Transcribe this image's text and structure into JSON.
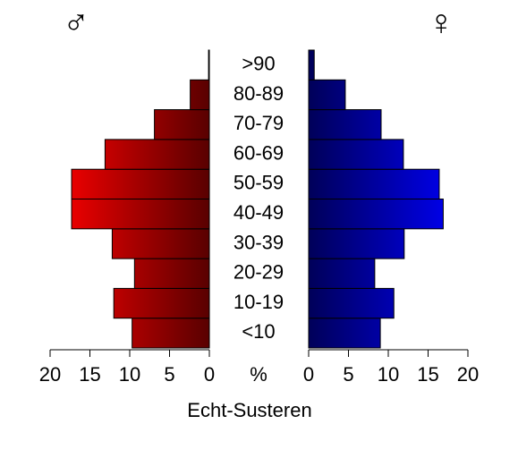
{
  "chart_data": {
    "type": "population-pyramid",
    "title": "Echt-Susteren",
    "center_label": "%",
    "categories": [
      "<10",
      "10-19",
      "20-29",
      "30-39",
      "40-49",
      "50-59",
      "60-69",
      "70-79",
      "80-89",
      ">90"
    ],
    "series": [
      {
        "name": "♂",
        "color": "#ff0000",
        "side": "left",
        "values": [
          9.7,
          12.0,
          9.4,
          12.2,
          17.3,
          17.3,
          13.1,
          6.9,
          2.4,
          0.1
        ]
      },
      {
        "name": "♀",
        "color": "#0000ff",
        "side": "right",
        "values": [
          9.0,
          10.7,
          8.3,
          12.0,
          16.9,
          16.4,
          11.9,
          9.1,
          4.6,
          0.7
        ]
      }
    ],
    "xlim": [
      0,
      20
    ],
    "xticks": [
      0,
      5,
      10,
      15,
      20
    ]
  }
}
